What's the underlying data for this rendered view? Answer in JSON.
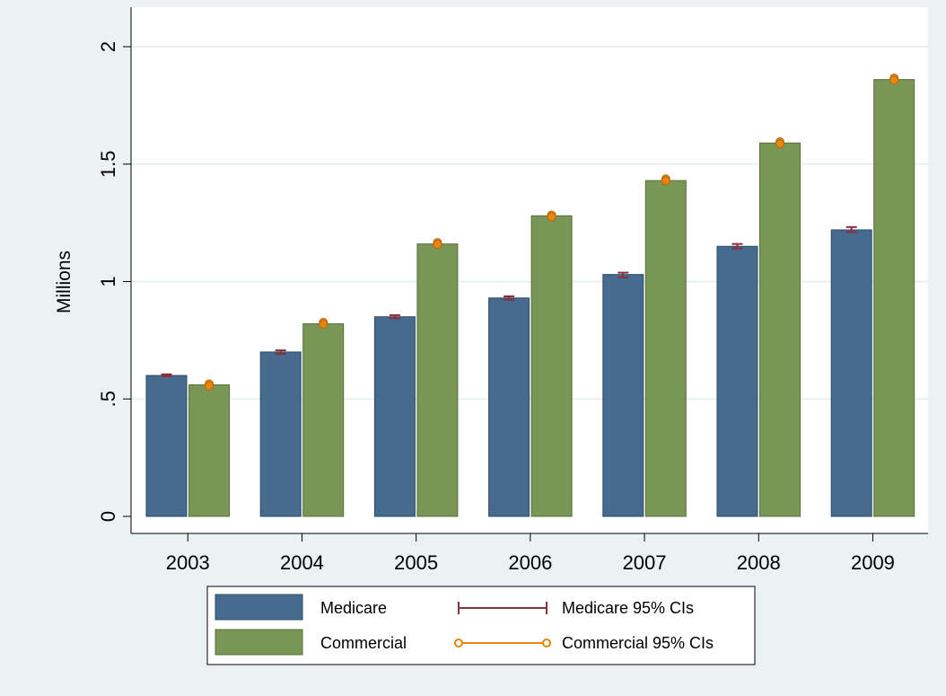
{
  "chart_data": {
    "type": "bar",
    "ylabel": "Millions",
    "xlabel": "",
    "ylim": [
      0,
      2
    ],
    "yticks": [
      0,
      0.5,
      1,
      1.5,
      2
    ],
    "ytick_labels": [
      "0",
      ".5",
      "1",
      "1.5",
      "2"
    ],
    "grid": true,
    "legend_position": "bottom",
    "categories": [
      "2003",
      "2004",
      "2005",
      "2006",
      "2007",
      "2008",
      "2009"
    ],
    "series": [
      {
        "name": "Medicare",
        "color": "#476a8f",
        "values": [
          0.6,
          0.7,
          0.85,
          0.93,
          1.03,
          1.15,
          1.22
        ],
        "ci_low": [
          0.597,
          0.692,
          0.844,
          0.923,
          1.018,
          1.141,
          1.21
        ],
        "ci_high": [
          0.605,
          0.707,
          0.857,
          0.937,
          1.038,
          1.16,
          1.232
        ]
      },
      {
        "name": "Commercial",
        "color": "#7a9656",
        "values": [
          0.56,
          0.82,
          1.16,
          1.28,
          1.43,
          1.59,
          1.86
        ],
        "ci_low": [
          0.555,
          0.818,
          1.158,
          1.275,
          1.429,
          1.587,
          1.858
        ],
        "ci_high": [
          0.564,
          0.826,
          1.166,
          1.283,
          1.437,
          1.595,
          1.866
        ]
      }
    ],
    "legend": [
      {
        "label": "Medicare",
        "kind": "bar",
        "color": "#476a8f"
      },
      {
        "label": "Medicare 95% CIs",
        "kind": "capped-line",
        "color": "#8b2f3c"
      },
      {
        "label": "Commercial",
        "kind": "bar",
        "color": "#7a9656"
      },
      {
        "label": "Commercial 95% CIs",
        "kind": "circle-line",
        "color": "#e8860d"
      }
    ],
    "colors": {
      "page_background": "#eaf2f3",
      "plot_background": "#ffffff",
      "grid": "#e3ecee",
      "medicare_bar": "#476a8f",
      "commercial_bar": "#7a9656",
      "medicare_ci": "#8b2f3c",
      "commercial_ci": "#e8860d"
    }
  }
}
